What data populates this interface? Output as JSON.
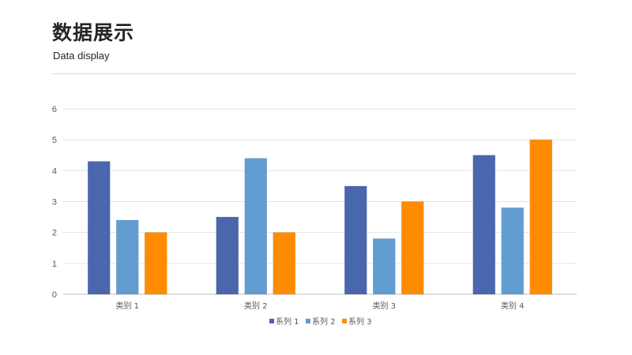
{
  "header": {
    "title": "数据展示",
    "subtitle": "Data display"
  },
  "chart_data": {
    "type": "bar",
    "categories": [
      "类别 1",
      "类别 2",
      "类别 3",
      "类别 4"
    ],
    "series": [
      {
        "name": "系列 1",
        "color": "#4a66ac",
        "values": [
          4.3,
          2.5,
          3.5,
          4.5
        ]
      },
      {
        "name": "系列 2",
        "color": "#629dd1",
        "values": [
          2.4,
          4.4,
          1.8,
          2.8
        ]
      },
      {
        "name": "系列 3",
        "color": "#ff8c00",
        "values": [
          2,
          2,
          3,
          5
        ]
      }
    ],
    "ylim": [
      0,
      6
    ],
    "yticks": [
      "0",
      "1",
      "2",
      "3",
      "4",
      "5",
      "6"
    ],
    "grid": true,
    "legend_position": "bottom"
  }
}
